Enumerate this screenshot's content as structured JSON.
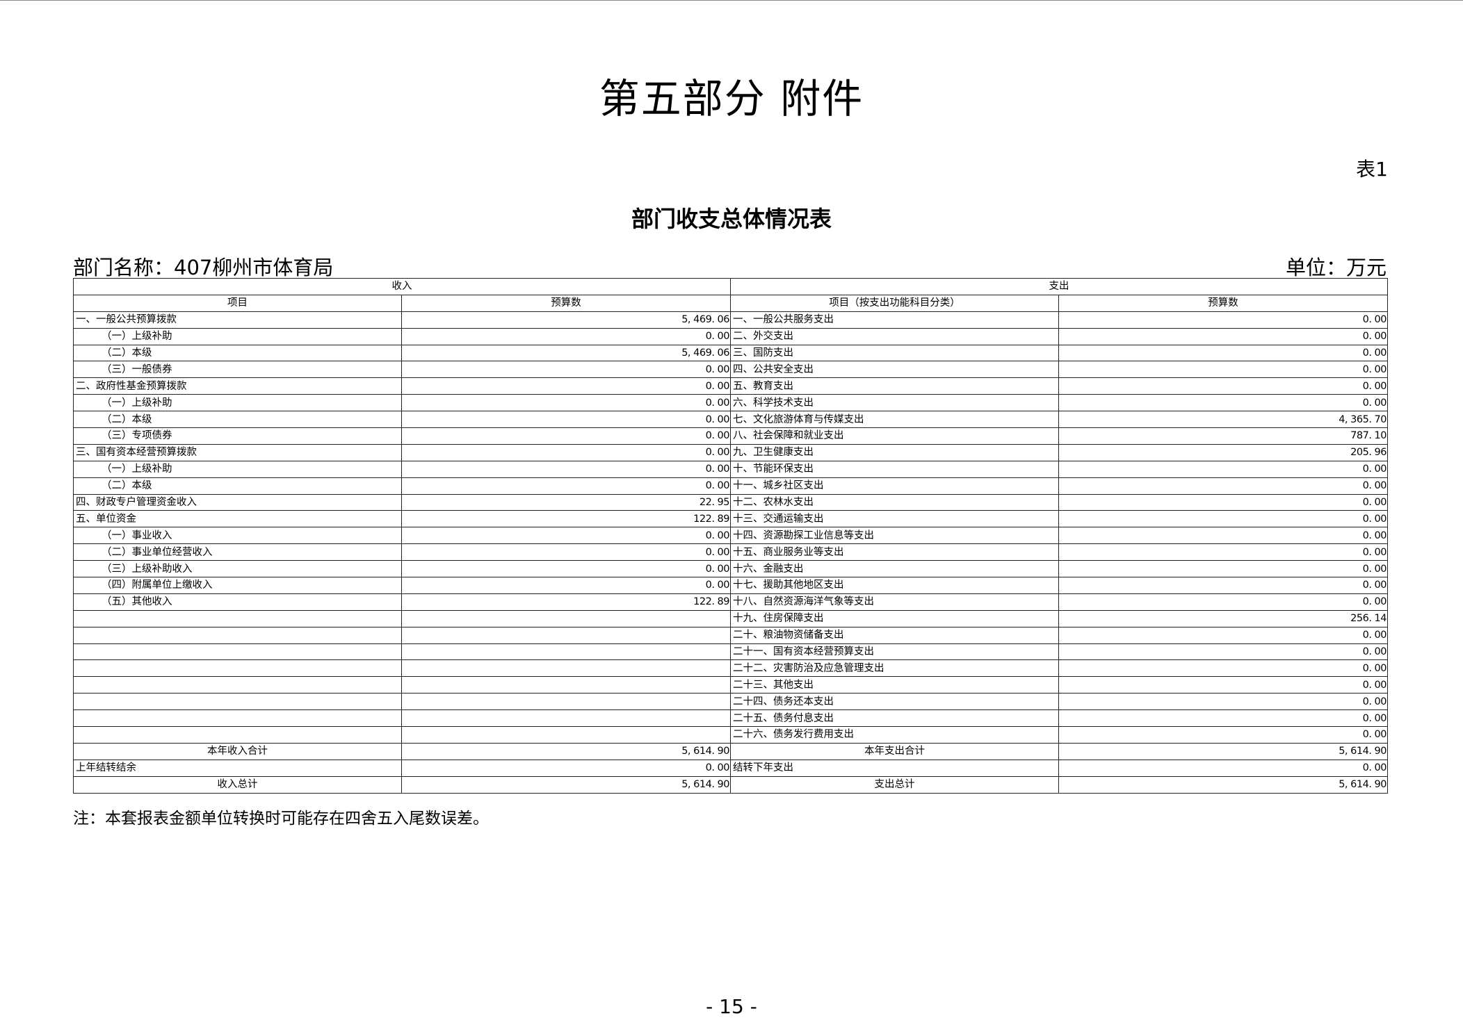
{
  "title": "第五部分  附件",
  "table_no": "表1",
  "subtitle": "部门收支总体情况表",
  "dept_name": "部门名称：407柳州市体育局",
  "unit": "单位：万元",
  "headers": {
    "income": "收入",
    "expense": "支出",
    "income_item": "项目",
    "income_amount": "预算数",
    "expense_item": "项目（按支出功能科目分类）",
    "expense_amount": "预算数"
  },
  "rows": [
    {
      "in_item": "一、一般公共预算拨款",
      "in_indent": false,
      "in_amt": "5, 469. 06",
      "ex_item": "一、一般公共服务支出",
      "ex_amt": "0. 00"
    },
    {
      "in_item": "（一）上级补助",
      "in_indent": true,
      "in_amt": "0. 00",
      "ex_item": "二、外交支出",
      "ex_amt": "0. 00"
    },
    {
      "in_item": "（二）本级",
      "in_indent": true,
      "in_amt": "5, 469. 06",
      "ex_item": "三、国防支出",
      "ex_amt": "0. 00"
    },
    {
      "in_item": "（三）一般债券",
      "in_indent": true,
      "in_amt": "0. 00",
      "ex_item": "四、公共安全支出",
      "ex_amt": "0. 00"
    },
    {
      "in_item": "二、政府性基金预算拨款",
      "in_indent": false,
      "in_amt": "0. 00",
      "ex_item": "五、教育支出",
      "ex_amt": "0. 00"
    },
    {
      "in_item": "（一）上级补助",
      "in_indent": true,
      "in_amt": "0. 00",
      "ex_item": "六、科学技术支出",
      "ex_amt": "0. 00"
    },
    {
      "in_item": "（二）本级",
      "in_indent": true,
      "in_amt": "0. 00",
      "ex_item": "七、文化旅游体育与传媒支出",
      "ex_amt": "4, 365. 70"
    },
    {
      "in_item": "（三）专项债券",
      "in_indent": true,
      "in_amt": "0. 00",
      "ex_item": "八、社会保障和就业支出",
      "ex_amt": "787. 10"
    },
    {
      "in_item": "三、国有资本经营预算拨款",
      "in_indent": false,
      "in_amt": "0. 00",
      "ex_item": "九、卫生健康支出",
      "ex_amt": "205. 96"
    },
    {
      "in_item": "（一）上级补助",
      "in_indent": true,
      "in_amt": "0. 00",
      "ex_item": "十、节能环保支出",
      "ex_amt": "0. 00"
    },
    {
      "in_item": "（二）本级",
      "in_indent": true,
      "in_amt": "0. 00",
      "ex_item": "十一、城乡社区支出",
      "ex_amt": "0. 00"
    },
    {
      "in_item": "四、财政专户管理资金收入",
      "in_indent": false,
      "in_amt": "22. 95",
      "ex_item": "十二、农林水支出",
      "ex_amt": "0. 00"
    },
    {
      "in_item": "五、单位资金",
      "in_indent": false,
      "in_amt": "122. 89",
      "ex_item": "十三、交通运输支出",
      "ex_amt": "0. 00"
    },
    {
      "in_item": "（一）事业收入",
      "in_indent": true,
      "in_amt": "0. 00",
      "ex_item": "十四、资源勘探工业信息等支出",
      "ex_amt": "0. 00"
    },
    {
      "in_item": "（二）事业单位经营收入",
      "in_indent": true,
      "in_amt": "0. 00",
      "ex_item": "十五、商业服务业等支出",
      "ex_amt": "0. 00"
    },
    {
      "in_item": "（三）上级补助收入",
      "in_indent": true,
      "in_amt": "0. 00",
      "ex_item": "十六、金融支出",
      "ex_amt": "0. 00"
    },
    {
      "in_item": "（四）附属单位上缴收入",
      "in_indent": true,
      "in_amt": "0. 00",
      "ex_item": "十七、援助其他地区支出",
      "ex_amt": "0. 00"
    },
    {
      "in_item": "（五）其他收入",
      "in_indent": true,
      "in_amt": "122. 89",
      "ex_item": "十八、自然资源海洋气象等支出",
      "ex_amt": "0. 00"
    },
    {
      "in_item": "",
      "in_indent": false,
      "in_amt": "",
      "ex_item": "十九、住房保障支出",
      "ex_amt": "256. 14"
    },
    {
      "in_item": "",
      "in_indent": false,
      "in_amt": "",
      "ex_item": "二十、粮油物资储备支出",
      "ex_amt": "0. 00"
    },
    {
      "in_item": "",
      "in_indent": false,
      "in_amt": "",
      "ex_item": "二十一、国有资本经营预算支出",
      "ex_amt": "0. 00"
    },
    {
      "in_item": "",
      "in_indent": false,
      "in_amt": "",
      "ex_item": "二十二、灾害防治及应急管理支出",
      "ex_amt": "0. 00"
    },
    {
      "in_item": "",
      "in_indent": false,
      "in_amt": "",
      "ex_item": "二十三、其他支出",
      "ex_amt": "0. 00"
    },
    {
      "in_item": "",
      "in_indent": false,
      "in_amt": "",
      "ex_item": "二十四、债务还本支出",
      "ex_amt": "0. 00"
    },
    {
      "in_item": "",
      "in_indent": false,
      "in_amt": "",
      "ex_item": "二十五、债务付息支出",
      "ex_amt": "0. 00"
    },
    {
      "in_item": "",
      "in_indent": false,
      "in_amt": "",
      "ex_item": "二十六、债务发行费用支出",
      "ex_amt": "0. 00"
    }
  ],
  "totals": [
    {
      "in_item": "本年收入合计",
      "in_center": true,
      "in_amt": "5, 614. 90",
      "ex_item": "本年支出合计",
      "ex_center": true,
      "ex_amt": "5, 614. 90"
    },
    {
      "in_item": "上年结转结余",
      "in_center": false,
      "in_amt": "0. 00",
      "ex_item": "结转下年支出",
      "ex_center": false,
      "ex_amt": "0. 00"
    },
    {
      "in_item": "收入总计",
      "in_center": true,
      "in_amt": "5, 614. 90",
      "ex_item": "支出总计",
      "ex_center": true,
      "ex_amt": "5, 614. 90"
    }
  ],
  "note": "注：本套报表金额单位转换时可能存在四舍五入尾数误差。",
  "page_number": "- 15 -"
}
